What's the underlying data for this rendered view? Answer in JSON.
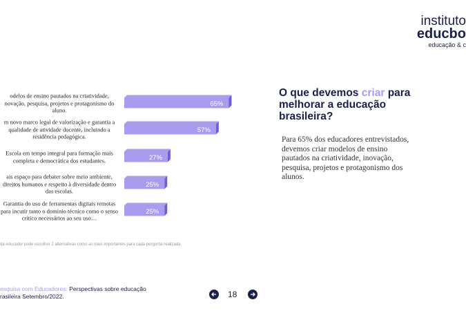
{
  "chart_data": {
    "type": "hbar",
    "categories": [
      "odelos de ensino pautados na criatividade, novação, pesquisa, projetos e protagonismo do aluno.",
      "m novo marco legal de valorização e garantia a qualidade de atividade docente, incluindo a residência pedagógica.",
      "Escola em tempo integral para formação mais completa e democrática dos estudantes.",
      "ais espaço para debater sobre meio ambiente, direitos humanos e respeito à diversidade dentro das escolas.",
      "Garantia do uso de ferramentas digitais remotas para incutir tanto o domínio técnico como o senso crítico necessários ao seu uso…"
    ],
    "values": [
      65,
      57,
      27,
      25,
      25
    ],
    "value_labels": [
      "65%",
      "57%",
      "27%",
      "25%",
      "25%"
    ],
    "color": "#a99cf0",
    "side_color": "#6f5fd6"
  },
  "slide": {
    "title_start": "O que devemos",
    "title_highlight": "criar",
    "title_end": "para melhorar a educação brasileira?",
    "body": "Para 65% dos educadores entrevistados, devemos criar  modelos de ensino pautados na criatividade, inovação, pesquisa, projetos e protagonismo dos alunos.",
    "footnote": "da educador pode  escolher 2 alternativas como as mais importantes para cada pergunta realizada.",
    "footer_highlight": "esquisa com Educadores:",
    "footer_rest": "Perspectivas sobre educação rasileira Setembro/2022.",
    "page_number": "18",
    "logo_line1": "instituto",
    "logo_line2": "educbo",
    "logo_line3": "educação & c"
  }
}
